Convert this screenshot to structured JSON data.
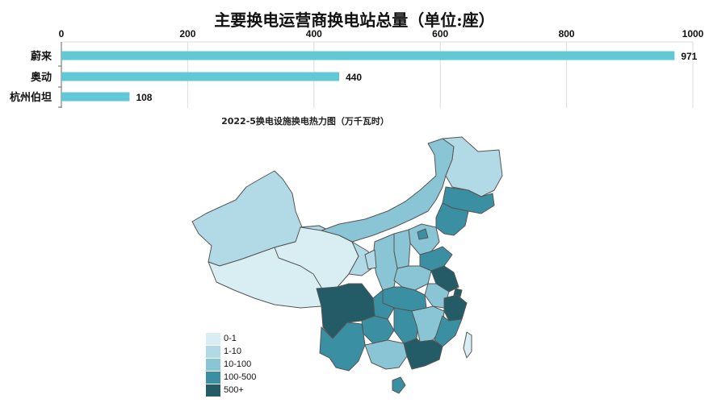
{
  "watermark": "",
  "chart_data": [
    {
      "type": "bar",
      "orientation": "horizontal",
      "title": "主要换电运营商换电站总量（单位:座）",
      "categories": [
        "蔚来",
        "奥动",
        "杭州伯坦"
      ],
      "values": [
        971,
        440,
        108
      ],
      "data_labels": [
        "971",
        "440",
        "108"
      ],
      "xlim": [
        0,
        1000
      ],
      "x_ticks": [
        0,
        200,
        400,
        600,
        800,
        1000
      ],
      "x_tick_labels": [
        "0",
        "200",
        "400",
        "600",
        "800",
        "1000"
      ],
      "axis_position": "top",
      "grid": true,
      "bar_color": "#62c8d6"
    },
    {
      "type": "choropleth",
      "title": "2022-5换电设施换电热力图（万千瓦时）",
      "legend": [
        {
          "label": "0-1",
          "color": "#d8eef3"
        },
        {
          "label": "1-10",
          "color": "#b1dae6"
        },
        {
          "label": "10-100",
          "color": "#8ac5d6"
        },
        {
          "label": "100-500",
          "color": "#3a8fa2"
        },
        {
          "label": "500+",
          "color": "#235b66"
        }
      ],
      "legend_position": "bottom-left"
    }
  ]
}
